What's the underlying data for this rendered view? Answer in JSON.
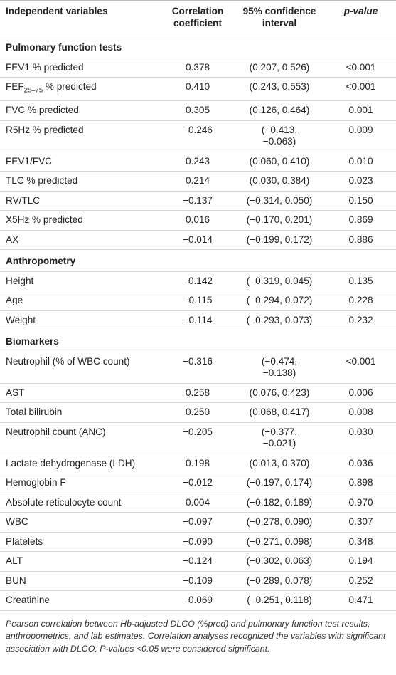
{
  "table": {
    "header": [
      "Independent variables",
      "Correlation coefficient",
      "95% confidence interval",
      "p-value"
    ],
    "sections": [
      {
        "title": "Pulmonary function tests",
        "rows": [
          [
            "FEV1 % predicted",
            "0.378",
            "(0.207, 0.526)",
            "<0.001"
          ],
          [
            [
              "FEF",
              {
                "sub": "25–75"
              },
              " % predicted"
            ],
            "0.410",
            "(0.243, 0.553)",
            "<0.001"
          ],
          [
            "FVC % predicted",
            "0.305",
            "(0.126, 0.464)",
            "0.001"
          ],
          [
            "R5Hz % predicted",
            "−0.246",
            "(−0.413, −0.063)",
            "0.009"
          ],
          [
            "FEV1/FVC",
            "0.243",
            "(0.060, 0.410)",
            "0.010"
          ],
          [
            "TLC % predicted",
            "0.214",
            "(0.030, 0.384)",
            "0.023"
          ],
          [
            "RV/TLC",
            "−0.137",
            "(−0.314, 0.050)",
            "0.150"
          ],
          [
            "X5Hz % predicted",
            "0.016",
            "(−0.170, 0.201)",
            "0.869"
          ],
          [
            "AX",
            "−0.014",
            "(−0.199, 0.172)",
            "0.886"
          ]
        ]
      },
      {
        "title": "Anthropometry",
        "rows": [
          [
            "Height",
            "−0.142",
            "(−0.319, 0.045)",
            "0.135"
          ],
          [
            "Age",
            "−0.115",
            "(−0.294, 0.072)",
            "0.228"
          ],
          [
            "Weight",
            "−0.114",
            "(−0.293, 0.073)",
            "0.232"
          ]
        ]
      },
      {
        "title": "Biomarkers",
        "rows": [
          [
            "Neutrophil (% of WBC count)",
            "−0.316",
            "(−0.474, −0.138)",
            "<0.001"
          ],
          [
            "AST",
            "0.258",
            "(0.076, 0.423)",
            "0.006"
          ],
          [
            "Total bilirubin",
            "0.250",
            "(0.068, 0.417)",
            "0.008"
          ],
          [
            "Neutrophil count (ANC)",
            "−0.205",
            "(−0.377, −0.021)",
            "0.030"
          ],
          [
            "Lactate dehydrogenase (LDH)",
            "0.198",
            "(0.013, 0.370)",
            "0.036"
          ],
          [
            "Hemoglobin F",
            "−0.012",
            "(−0.197, 0.174)",
            "0.898"
          ],
          [
            "Absolute reticulocyte count",
            "0.004",
            "(−0.182, 0.189)",
            "0.970"
          ],
          [
            "WBC",
            "−0.097",
            "(−0.278, 0.090)",
            "0.307"
          ],
          [
            "Platelets",
            "−0.090",
            "(−0.271, 0.098)",
            "0.348"
          ],
          [
            "ALT",
            "−0.124",
            "(−0.302, 0.063)",
            "0.194"
          ],
          [
            "BUN",
            "−0.109",
            "(−0.289, 0.078)",
            "0.252"
          ],
          [
            "Creatinine",
            "−0.069",
            "(−0.251, 0.118)",
            "0.471"
          ]
        ]
      }
    ],
    "footnote": "Pearson correlation between Hb-adjusted DLCO (%pred) and pulmonary function test results, anthropometrics, and lab estimates. Correlation analyses recognized the variables with significant association with DLCO. P-values <0.05 were considered significant."
  }
}
